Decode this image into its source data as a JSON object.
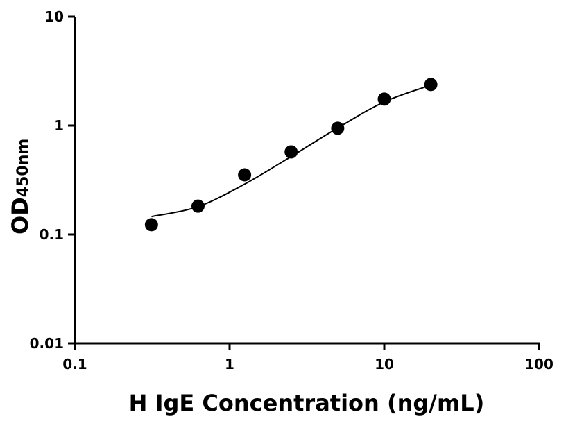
{
  "chart_data": {
    "type": "scatter",
    "xlabel": "H IgE Concentration (ng/mL)",
    "ylabel_main": "OD",
    "ylabel_sub": "450nm",
    "xscale": "log",
    "yscale": "log",
    "xlim": [
      0.1,
      100
    ],
    "ylim": [
      0.01,
      10
    ],
    "xticks": [
      0.1,
      1,
      10,
      100
    ],
    "xtick_labels": [
      "0.1",
      "1",
      "10",
      "100"
    ],
    "yticks": [
      0.01,
      0.1,
      1,
      10
    ],
    "ytick_labels": [
      "0.01",
      "0.1",
      "1",
      "10"
    ],
    "grid": false,
    "points": [
      {
        "x": 0.3125,
        "y": 0.123
      },
      {
        "x": 0.625,
        "y": 0.182
      },
      {
        "x": 1.25,
        "y": 0.353
      },
      {
        "x": 2.5,
        "y": 0.573
      },
      {
        "x": 5,
        "y": 0.944
      },
      {
        "x": 10,
        "y": 1.75
      },
      {
        "x": 20,
        "y": 2.38
      }
    ],
    "fit_curve": [
      {
        "x": 0.3125,
        "y": 0.146
      },
      {
        "x": 0.625,
        "y": 0.18
      },
      {
        "x": 1.25,
        "y": 0.29
      },
      {
        "x": 2.5,
        "y": 0.52
      },
      {
        "x": 5,
        "y": 0.95
      },
      {
        "x": 10,
        "y": 1.65
      },
      {
        "x": 20,
        "y": 2.35
      }
    ],
    "colors": {
      "points": "#000000",
      "curve": "#000000",
      "axes": "#000000"
    }
  }
}
